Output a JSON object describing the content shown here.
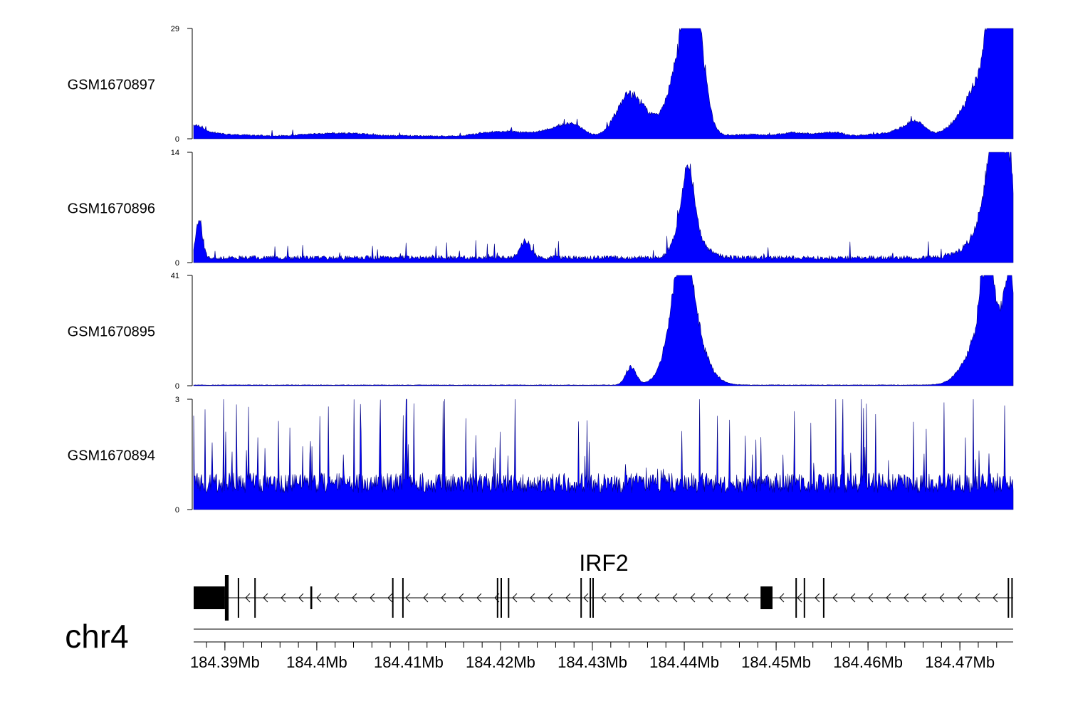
{
  "chart_data": {
    "type": "area",
    "fill_color": "#0000ff",
    "stroke_color": "#000080",
    "x_range": [
      184.3866,
      184.4758
    ],
    "tracks": [
      {
        "name": "GSM1670897",
        "ylim": [
          0,
          29
        ],
        "ytick_labels": [
          "0",
          "29"
        ],
        "peaks": [
          [
            184.3868,
            2.2,
            0.1
          ],
          [
            184.3875,
            1.5,
            0.25
          ],
          [
            184.392,
            0.6,
            0.3
          ],
          [
            184.4,
            0.9,
            0.4
          ],
          [
            184.404,
            0.7,
            0.3
          ],
          [
            184.41,
            0.4,
            0.5
          ],
          [
            184.419,
            1.2,
            0.3
          ],
          [
            184.422,
            1.0,
            0.3
          ],
          [
            184.4265,
            2.6,
            0.25
          ],
          [
            184.428,
            2.2,
            0.15
          ],
          [
            184.4335,
            8.5,
            0.18
          ],
          [
            184.435,
            6.5,
            0.18
          ],
          [
            184.437,
            1.5,
            0.2
          ],
          [
            184.4385,
            1.2,
            0.1
          ],
          [
            184.4405,
            27.5,
            0.18
          ],
          [
            184.4412,
            18.0,
            0.12
          ],
          [
            184.4395,
            7.0,
            0.25
          ],
          [
            184.447,
            0.8,
            0.3
          ],
          [
            184.452,
            1.3,
            0.2
          ],
          [
            184.456,
            1.5,
            0.2
          ],
          [
            184.461,
            1.0,
            0.2
          ],
          [
            184.464,
            2.8,
            0.15
          ],
          [
            184.4655,
            3.5,
            0.12
          ],
          [
            184.472,
            5.0,
            0.35
          ],
          [
            184.474,
            28.0,
            0.12
          ],
          [
            184.4738,
            19.0,
            0.3
          ],
          [
            184.4755,
            22.0,
            0.1
          ]
        ],
        "baseline": 0.25,
        "noise": 0.6,
        "spike_prob": 0.02,
        "spike_max": 1.5
      },
      {
        "name": "GSM1670896",
        "ylim": [
          0,
          14
        ],
        "ytick_labels": [
          "0",
          "14"
        ],
        "peaks": [
          [
            184.3872,
            5.5,
            0.05
          ],
          [
            184.4227,
            2.5,
            0.08
          ],
          [
            184.44,
            5.5,
            0.12
          ],
          [
            184.4406,
            6.2,
            0.08
          ],
          [
            184.441,
            2.5,
            0.2
          ],
          [
            184.4738,
            12.5,
            0.15
          ],
          [
            184.4742,
            13.2,
            0.08
          ],
          [
            184.4725,
            3.0,
            0.25
          ],
          [
            184.4755,
            10.0,
            0.05
          ]
        ],
        "baseline": 0.35,
        "noise": 0.9,
        "spike_prob": 0.045,
        "spike_max": 2.2
      },
      {
        "name": "GSM1670895",
        "ylim": [
          0,
          41
        ],
        "ytick_labels": [
          "0",
          "41"
        ],
        "peaks": [
          [
            184.4342,
            7.5,
            0.08
          ],
          [
            184.4399,
            31.0,
            0.15
          ],
          [
            184.4404,
            20.0,
            0.25
          ],
          [
            184.4394,
            10.0,
            0.2
          ],
          [
            184.473,
            38.0,
            0.1
          ],
          [
            184.4725,
            20.0,
            0.25
          ],
          [
            184.4755,
            40.5,
            0.09
          ],
          [
            184.4748,
            8.0,
            0.15
          ]
        ],
        "baseline": 0.15,
        "noise": 0.35,
        "spike_prob": 0.0,
        "spike_max": 0.0
      },
      {
        "name": "GSM1670894",
        "ylim": [
          0,
          3
        ],
        "ytick_labels": [
          "0",
          "3"
        ],
        "peaks": [],
        "baseline": 0.45,
        "noise": 0.55,
        "spike_prob": 0.08,
        "spike_max": 2.6
      }
    ],
    "gene": {
      "name": "IRF2",
      "strand": "-",
      "start": 184.3866,
      "end": 184.4758,
      "exons": [
        [
          184.3866,
          184.39,
          2
        ],
        [
          184.39,
          184.3904,
          3
        ],
        [
          184.3914,
          184.3916,
          1
        ],
        [
          184.3932,
          184.3934,
          1
        ],
        [
          184.3993,
          184.3995,
          2
        ],
        [
          184.4082,
          184.4084,
          1
        ],
        [
          184.4093,
          184.4095,
          1
        ],
        [
          184.4196,
          184.4198,
          1
        ],
        [
          184.42,
          184.4203,
          1
        ],
        [
          184.4208,
          184.421,
          1
        ],
        [
          184.4287,
          184.4289,
          1
        ],
        [
          184.4297,
          184.4299,
          1
        ],
        [
          184.43,
          184.4303,
          1
        ],
        [
          184.4483,
          184.4496,
          2
        ],
        [
          184.4521,
          184.4523,
          1
        ],
        [
          184.453,
          184.4532,
          1
        ],
        [
          184.4551,
          184.4553,
          1
        ],
        [
          184.4752,
          184.4754,
          1
        ],
        [
          184.4756,
          184.4758,
          1
        ]
      ]
    },
    "axis": {
      "chromosome": "chr4",
      "tick_labels": [
        "184.39Mb",
        "184.4Mb",
        "184.41Mb",
        "184.42Mb",
        "184.43Mb",
        "184.44Mb",
        "184.45Mb",
        "184.46Mb",
        "184.47Mb"
      ],
      "tick_values": [
        184.39,
        184.4,
        184.41,
        184.42,
        184.43,
        184.44,
        184.45,
        184.46,
        184.47
      ],
      "minor_ticks_per_major": 5
    }
  }
}
